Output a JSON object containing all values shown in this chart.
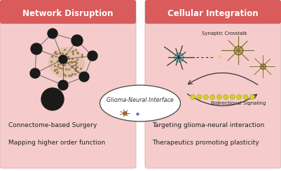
{
  "bg_color": "#FFFFFF",
  "left_panel_bg": "#F5CCCB",
  "right_panel_bg": "#F5CCCB",
  "header_color": "#D95B5B",
  "left_title": "Network Disruption",
  "right_title": "Cellular Integration",
  "center_label": "Glioma-Neural Interface",
  "left_bullets": [
    "Connectome-based Surgery",
    "Mapping higher order function"
  ],
  "right_bullets": [
    "Targeting glioma-neural interaction",
    "Therapeutics promoting plasticity"
  ],
  "synaptic_label": "Synaptic Crosstalk",
  "bidirectional_label": "Bidirectional Signaling",
  "node_color": "#1a1a1a",
  "edge_color": "#444444",
  "glioma_color": "#d4b896",
  "text_color": "#222222",
  "oval_border": "#555555"
}
